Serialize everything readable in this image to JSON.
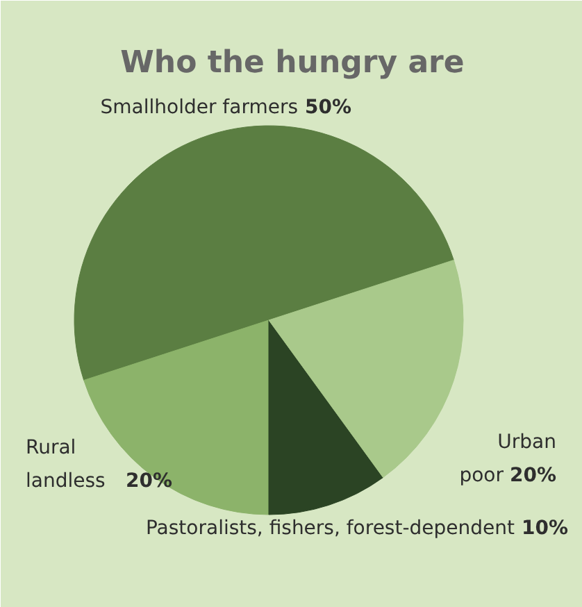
{
  "chart_data": {
    "type": "pie",
    "title": "Who the hungry are",
    "categories": [
      "Smallholder farmers",
      "Rural landless",
      "Pastoralists, fishers, forest-dependent",
      "Urban poor"
    ],
    "values": [
      50,
      20,
      10,
      20
    ],
    "value_labels": [
      "50%",
      "20%",
      "10%",
      "20%"
    ],
    "colors": [
      "#5b7e42",
      "#8cb36a",
      "#2b4424",
      "#a9c98b"
    ]
  }
}
